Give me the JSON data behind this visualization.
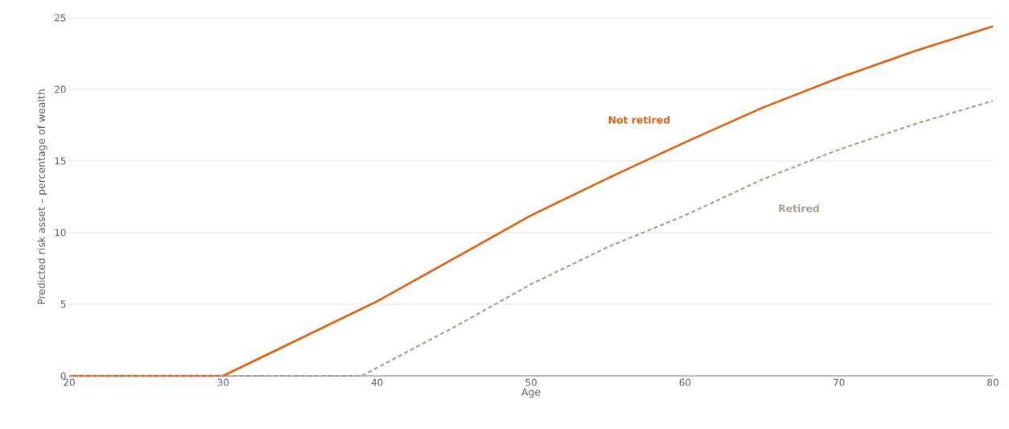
{
  "chart_data": {
    "type": "line",
    "xlabel": "Age",
    "ylabel": "Predicted risk asset – percentage of wealth",
    "xlim": [
      20,
      80
    ],
    "xticks": [
      20,
      30,
      40,
      50,
      60,
      70,
      80
    ],
    "ylim": [
      0,
      25
    ],
    "yticks": [
      0,
      5,
      10,
      15,
      20,
      25
    ],
    "grid": "y",
    "series": [
      {
        "name": "Not retired",
        "color": "#e3600f",
        "line_style": "solid",
        "x": [
          20,
          30,
          35,
          40,
          45,
          50,
          55,
          60,
          65,
          70,
          75,
          80
        ],
        "values": [
          0,
          0,
          2.6,
          5.2,
          8.2,
          11.2,
          13.8,
          16.3,
          18.7,
          20.8,
          22.7,
          24.4
        ]
      },
      {
        "name": "Retired",
        "color": "#a89f91",
        "line_style": "dashed",
        "x": [
          20,
          30,
          39,
          45,
          50,
          55,
          60,
          65,
          70,
          75,
          80
        ],
        "values": [
          0,
          0,
          0,
          3.4,
          6.4,
          9.0,
          11.2,
          13.7,
          15.8,
          17.6,
          19.2
        ]
      }
    ]
  }
}
